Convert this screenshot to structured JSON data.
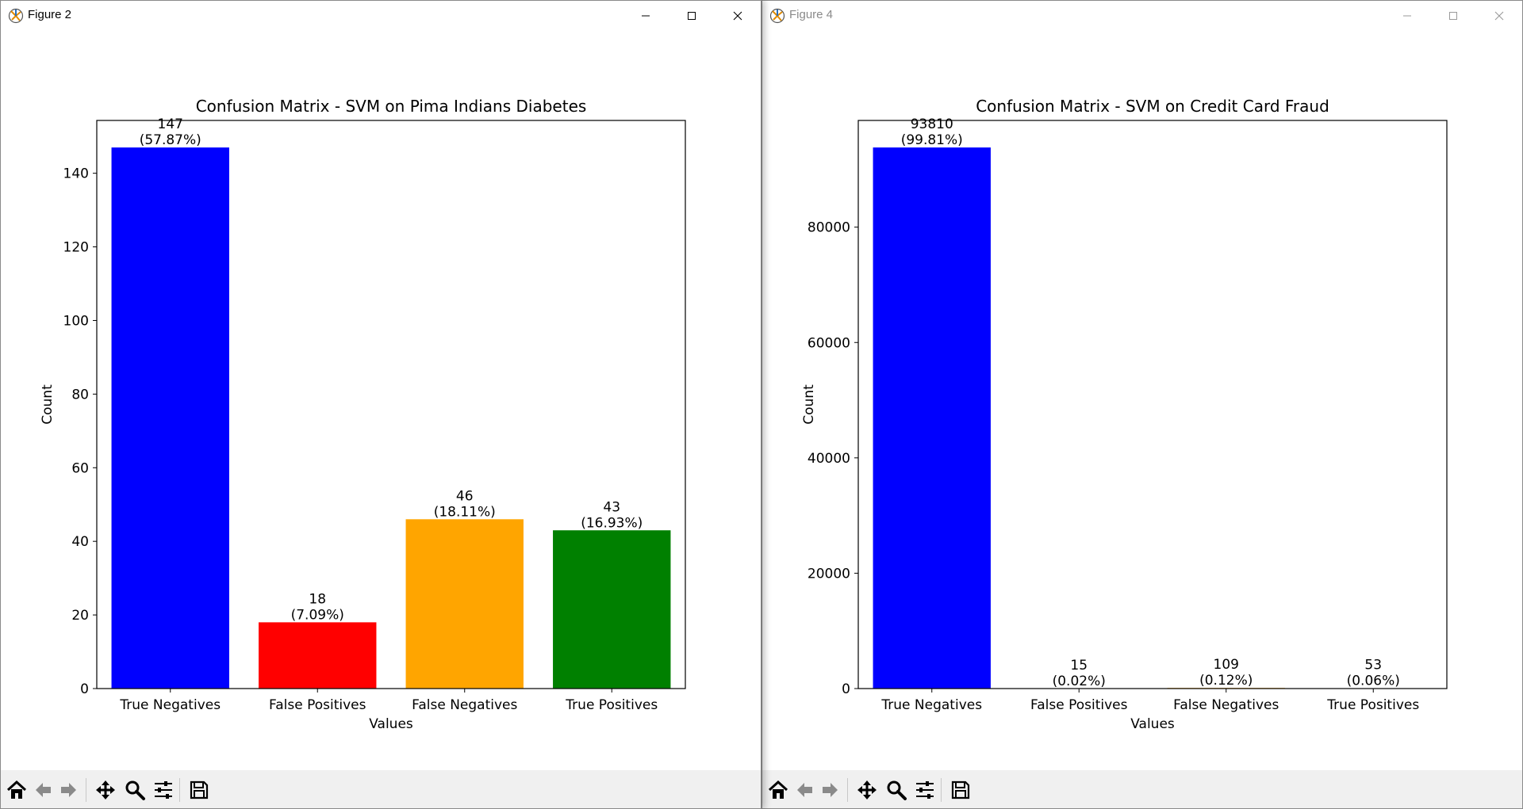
{
  "windows": [
    {
      "title": "Figure 2",
      "active": true,
      "chart_data": {
        "type": "bar",
        "title": "Confusion Matrix - SVM on Pima Indians Diabetes",
        "xlabel": "Values",
        "ylabel": "Count",
        "categories": [
          "True Negatives",
          "False Positives",
          "False Negatives",
          "True Positives"
        ],
        "values": [
          147,
          18,
          46,
          43
        ],
        "value_labels": [
          "147",
          "18",
          "46",
          "43"
        ],
        "percent_labels": [
          "(57.87%)",
          "(7.09%)",
          "(18.11%)",
          "(16.93%)"
        ],
        "colors": [
          "#0000ff",
          "#ff0000",
          "#ffa500",
          "#008000"
        ],
        "ylim": [
          0,
          154.35
        ],
        "yticks": [
          0,
          20,
          40,
          60,
          80,
          100,
          120,
          140
        ],
        "grid": false
      }
    },
    {
      "title": "Figure 4",
      "active": false,
      "chart_data": {
        "type": "bar",
        "title": "Confusion Matrix - SVM on Credit Card Fraud",
        "xlabel": "Values",
        "ylabel": "Count",
        "categories": [
          "True Negatives",
          "False Positives",
          "False Negatives",
          "True Positives"
        ],
        "values": [
          93810,
          15,
          109,
          53
        ],
        "value_labels": [
          "93810",
          "15",
          "109",
          "53"
        ],
        "percent_labels": [
          "(99.81%)",
          "(0.02%)",
          "(0.12%)",
          "(0.06%)"
        ],
        "colors": [
          "#0000ff",
          "#ff0000",
          "#ffa500",
          "#008000"
        ],
        "ylim": [
          0,
          98500.5
        ],
        "yticks": [
          0,
          20000,
          40000,
          60000,
          80000
        ],
        "grid": false
      }
    }
  ],
  "toolbar_icons": [
    "home-icon",
    "back-icon",
    "forward-icon",
    "pan-icon",
    "zoom-icon",
    "configure-subplots-icon",
    "save-icon"
  ]
}
